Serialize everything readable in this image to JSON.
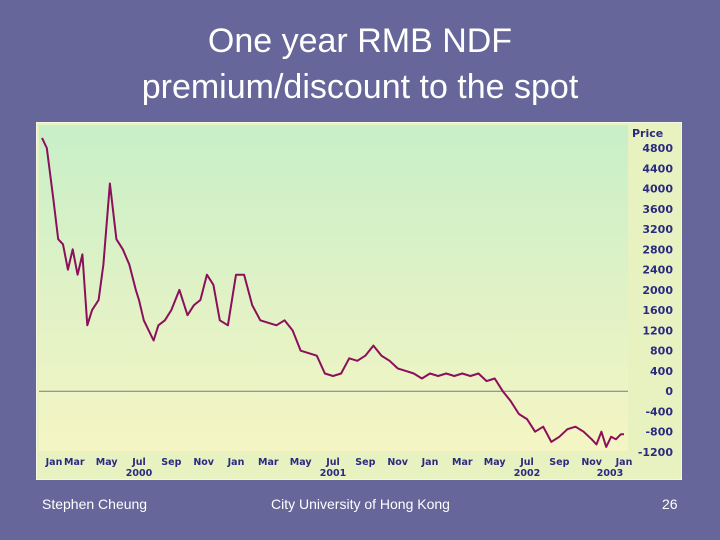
{
  "slide": {
    "title_line1": "One year RMB NDF",
    "title_line2": "premium/discount to the spot",
    "footer_left": "Stephen Cheung",
    "footer_center": "City University of Hong Kong",
    "footer_right": "26"
  },
  "colors": {
    "background": "#66669a",
    "line": "#8b0f5a",
    "plot_top": "#c8efc8",
    "plot_bottom": "#f5f5c4",
    "axis_text": "#2a2a80"
  },
  "chart_data": {
    "type": "line",
    "title": "",
    "xlabel": "",
    "ylabel": "Price",
    "ylim": [
      -1200,
      5000
    ],
    "yticks": [
      4800,
      4400,
      4000,
      3600,
      3200,
      2800,
      2400,
      2000,
      1600,
      1200,
      800,
      400,
      0,
      -400,
      -800,
      -1200
    ],
    "y_tick_labels": [
      "4800",
      "4400",
      "4000",
      "3600",
      "3200",
      "2800",
      "2400",
      "2000",
      "1600",
      "1200",
      "800",
      "400",
      "0",
      "-400",
      "-800",
      "-1200"
    ],
    "zero_line": true,
    "grid": false,
    "x_month_labels": [
      "Jan",
      "Mar",
      "May",
      "Jul",
      "Sep",
      "Nov",
      "Jan",
      "Mar",
      "May",
      "Jul",
      "Sep",
      "Nov",
      "Jan",
      "Mar",
      "May",
      "Jul",
      "Sep",
      "Nov",
      "Jan"
    ],
    "x_year_labels": [
      {
        "label": "2000",
        "month_index": 6
      },
      {
        "label": "2001",
        "month_index": 18
      },
      {
        "label": "2002",
        "month_index": 30
      },
      {
        "label": "2003",
        "month_index": 36
      }
    ],
    "series": [
      {
        "x": [
          0,
          0.3,
          0.7,
          1,
          1.3,
          1.6,
          1.9,
          2.2,
          2.5,
          2.8,
          3.1,
          3.5,
          3.8,
          4.2,
          4.6,
          5,
          5.4,
          5.8,
          6,
          6.3,
          6.6,
          6.9,
          7.2,
          7.6,
          8,
          8.5,
          9,
          9.4,
          9.8,
          10.2,
          10.6,
          11,
          11.5,
          12,
          12.5,
          13,
          13.5,
          14,
          14.5,
          15,
          15.5,
          16,
          16.5,
          17,
          17.5,
          18,
          18.5,
          19,
          19.5,
          20,
          20.5,
          21,
          21.5,
          22,
          22.5,
          23,
          23.5,
          24,
          24.5,
          25,
          25.5,
          26,
          26.5,
          27,
          27.5,
          28,
          28.5,
          29,
          29.5,
          30,
          30.5,
          31,
          31.5,
          32,
          32.5,
          33,
          33.5,
          34,
          34.3,
          34.6,
          34.9,
          35.2,
          35.5,
          35.8,
          36
        ],
        "values": [
          5000,
          4800,
          3800,
          3000,
          2900,
          2400,
          2800,
          2300,
          2700,
          1300,
          1600,
          1800,
          2500,
          4100,
          3000,
          2800,
          2500,
          2000,
          1800,
          1400,
          1200,
          1000,
          1300,
          1400,
          1600,
          2000,
          1500,
          1700,
          1800,
          2300,
          2100,
          1400,
          1300,
          2300,
          2300,
          1700,
          1400,
          1350,
          1300,
          1400,
          1200,
          800,
          750,
          700,
          350,
          300,
          350,
          650,
          600,
          700,
          900,
          700,
          600,
          450,
          400,
          350,
          250,
          350,
          300,
          350,
          300,
          350,
          300,
          350,
          200,
          250,
          0,
          -200,
          -450,
          -550,
          -800,
          -700,
          -1000,
          -900,
          -750,
          -700,
          -800,
          -950,
          -1050,
          -800,
          -1100,
          -900,
          -950,
          -850,
          -850
        ]
      }
    ]
  }
}
